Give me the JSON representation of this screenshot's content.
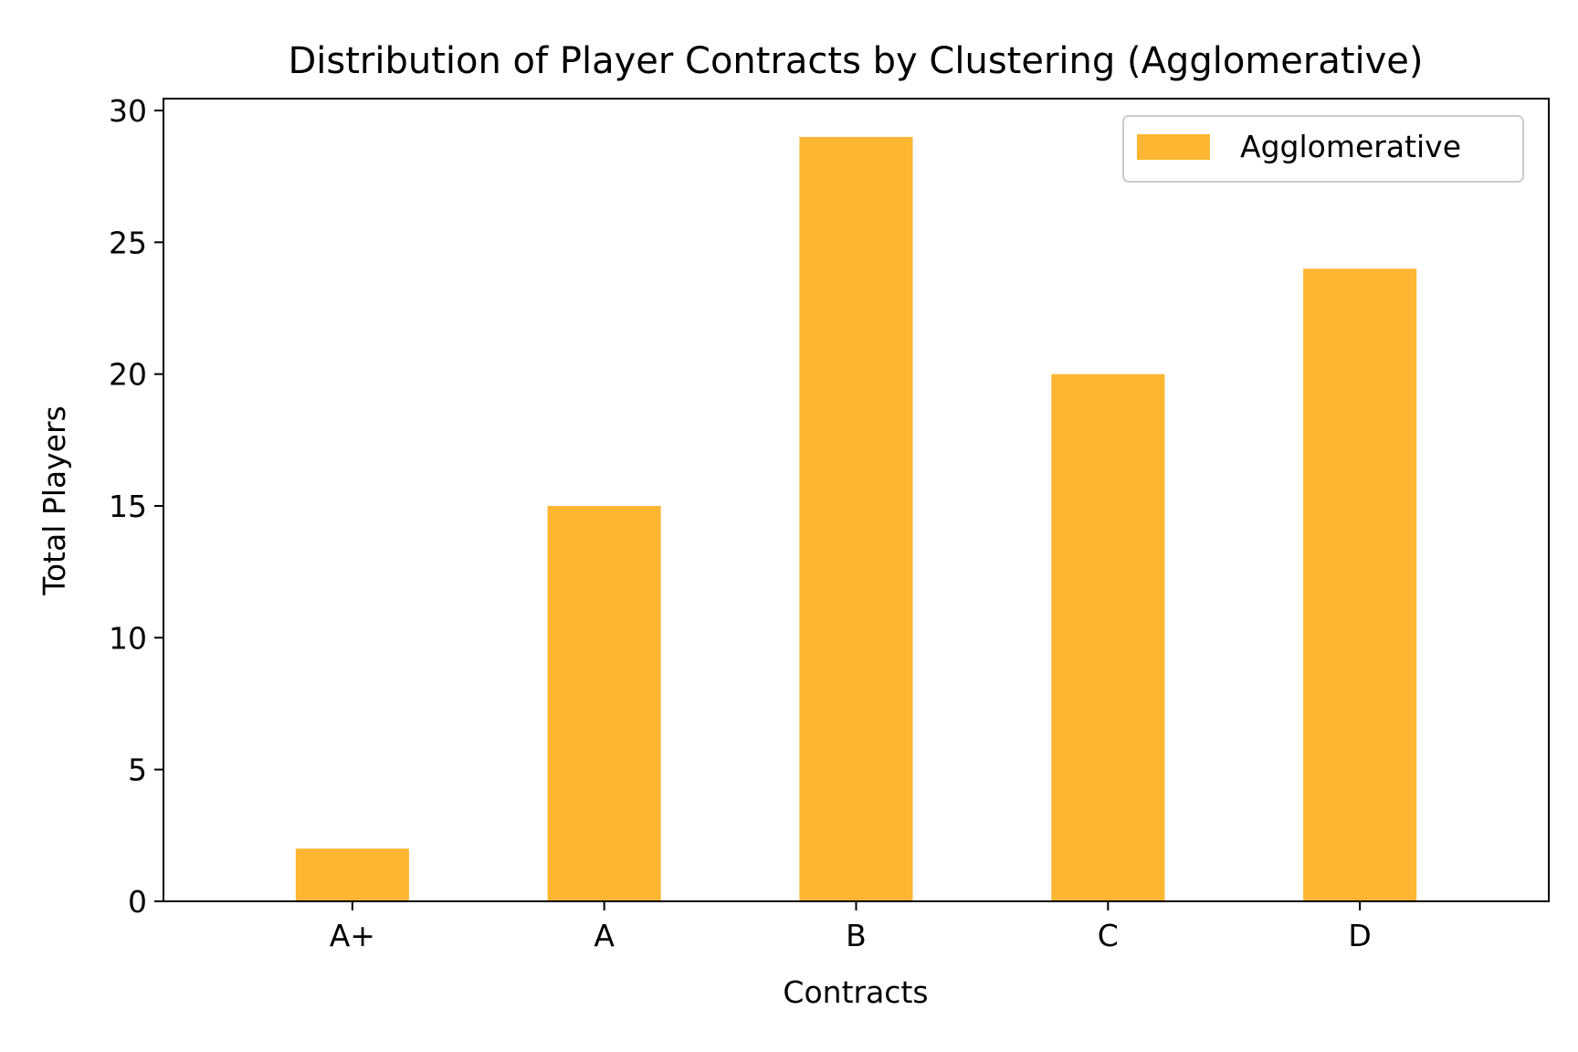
{
  "chart_data": {
    "type": "bar",
    "title": "Distribution of Player Contracts by Clustering (Agglomerative)",
    "xlabel": "Contracts",
    "ylabel": "Total Players",
    "categories": [
      "A+",
      "A",
      "B",
      "C",
      "D"
    ],
    "series": [
      {
        "name": "Agglomerative",
        "values": [
          2,
          15,
          29,
          20,
          24
        ],
        "color": "#fdb632"
      }
    ],
    "ylim": [
      0,
      30.45
    ],
    "yticks": [
      0,
      5,
      10,
      15,
      20,
      25,
      30
    ],
    "grid": false,
    "legend": "top-right"
  }
}
